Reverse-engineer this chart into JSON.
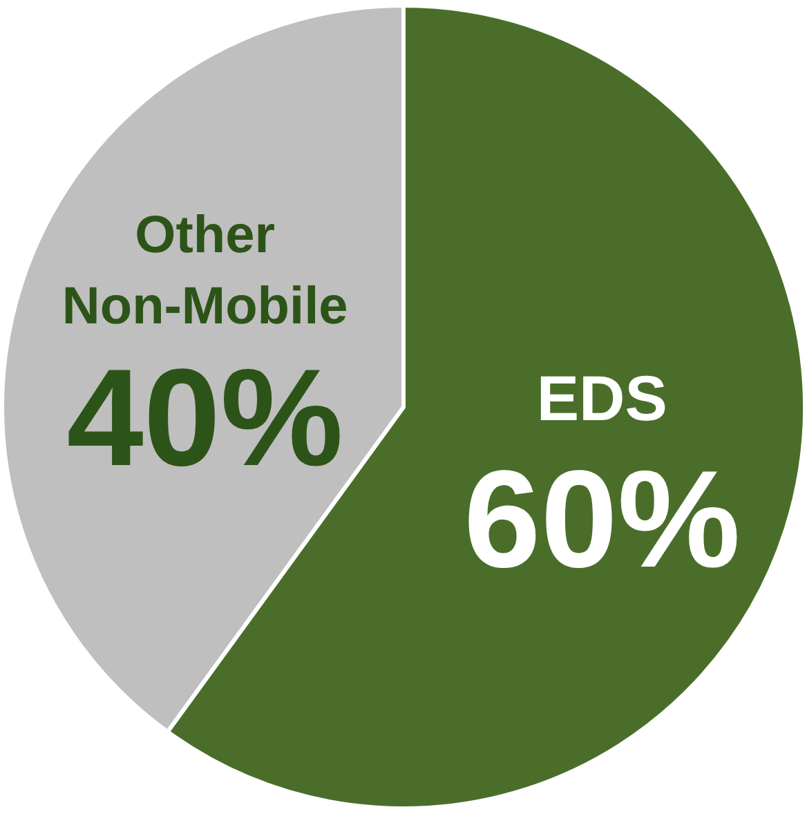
{
  "chart_data": {
    "type": "pie",
    "categories": [
      "EDS",
      "Other Non-Mobile"
    ],
    "values": [
      60,
      40
    ],
    "colors": [
      "#4a6e2a",
      "#bfbfbf"
    ],
    "value_labels": [
      "60%",
      "40%"
    ],
    "legend": false
  }
}
